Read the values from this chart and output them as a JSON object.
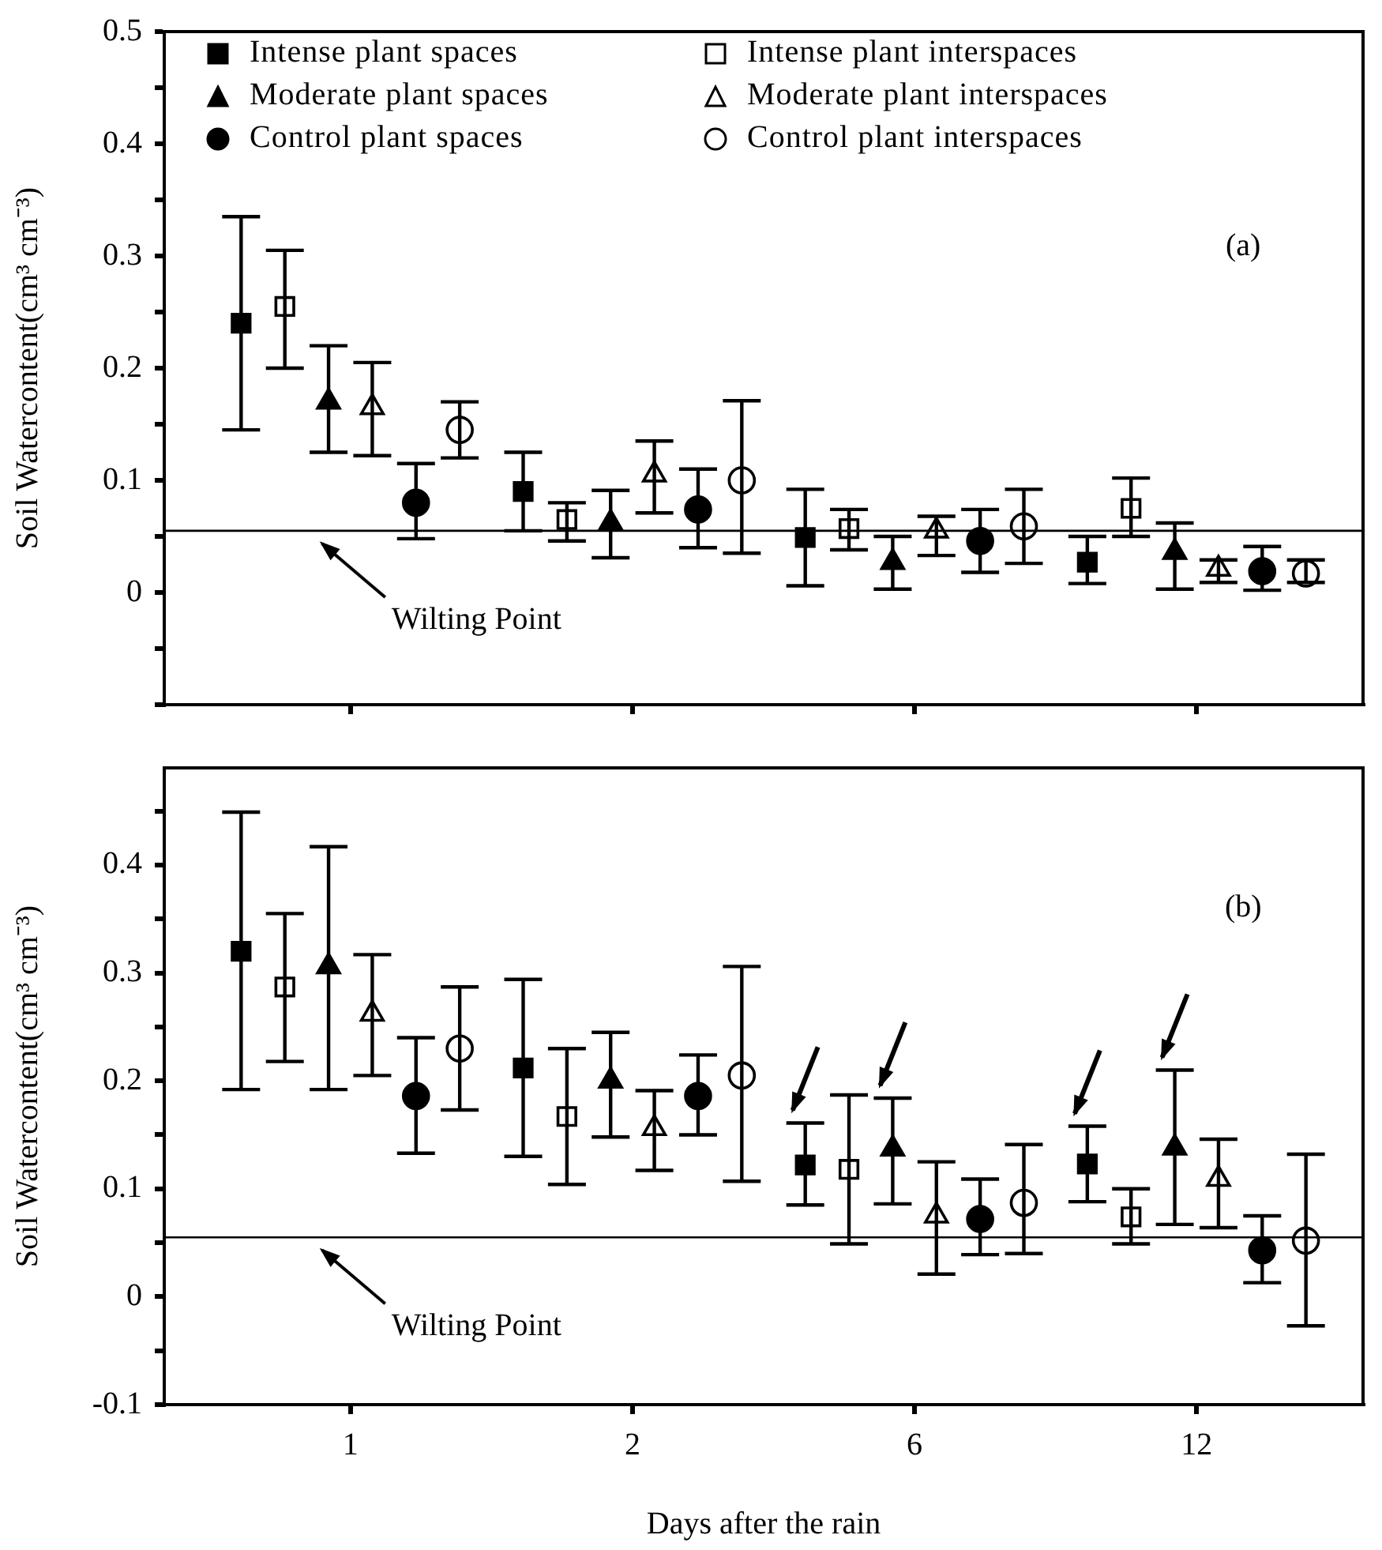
{
  "chart_data": [
    {
      "type": "scatter",
      "ylabel": "Soil Watercontent(cm³ cm⁻³)",
      "categories": [
        "1",
        "2",
        "6",
        "12"
      ],
      "ylim": [
        -0.1,
        0.5
      ],
      "yticks": [
        {
          "value": -0.1,
          "label": null
        },
        {
          "value": -0.05,
          "label": null
        },
        0,
        {
          "value": 0.05,
          "label": null
        },
        0.1,
        {
          "value": 0.15,
          "label": null
        },
        0.2,
        {
          "value": 0.25,
          "label": null
        },
        0.3,
        {
          "value": 0.35,
          "label": null
        },
        0.4,
        {
          "value": 0.45,
          "label": null
        },
        0.5
      ],
      "tick_labels": "y",
      "grid": false,
      "legend": "top left",
      "annotations": [
        "(a)"
      ],
      "ref_lines": [
        {
          "axis": "y",
          "value": 0.055,
          "label": "Wilting Point",
          "color": "#000000"
        }
      ],
      "series": [
        {
          "name": "Intense plant spaces",
          "color": "#000000",
          "marker": "square",
          "values": [
            0.24,
            0.09,
            0.049,
            0.027
          ],
          "errors": [
            [
              0.145,
              0.335
            ],
            [
              0.055,
              0.125
            ],
            [
              0.006,
              0.092
            ],
            [
              0.008,
              0.05
            ]
          ]
        },
        {
          "name": "Intense plant interspaces",
          "color": "#ffffff",
          "marker": "square",
          "values": [
            0.255,
            0.065,
            0.057,
            0.075
          ],
          "errors": [
            [
              0.2,
              0.305
            ],
            [
              0.046,
              0.08
            ],
            [
              0.038,
              0.074
            ],
            [
              0.05,
              0.102
            ]
          ]
        },
        {
          "name": "Moderate plant spaces",
          "color": "#000000",
          "marker": "triangle",
          "values": [
            0.17,
            0.062,
            0.027,
            0.036
          ],
          "errors": [
            [
              0.125,
              0.22
            ],
            [
              0.031,
              0.091
            ],
            [
              0.003,
              0.05
            ],
            [
              0.003,
              0.062
            ]
          ]
        },
        {
          "name": "Moderate plant interspaces",
          "color": "#ffffff",
          "marker": "triangle",
          "values": [
            0.165,
            0.105,
            0.055,
            0.021
          ],
          "errors": [
            [
              0.122,
              0.205
            ],
            [
              0.071,
              0.135
            ],
            [
              0.033,
              0.068
            ],
            [
              0.009,
              0.029
            ]
          ]
        },
        {
          "name": "Control plant spaces",
          "color": "#000000",
          "marker": "circle",
          "values": [
            0.08,
            0.074,
            0.046,
            0.019
          ],
          "errors": [
            [
              0.048,
              0.115
            ],
            [
              0.04,
              0.11
            ],
            [
              0.018,
              0.074
            ],
            [
              0.002,
              0.041
            ]
          ]
        },
        {
          "name": "Control plant interspaces",
          "color": "#ffffff",
          "marker": "circle",
          "values": [
            0.145,
            0.1,
            0.059,
            0.017
          ],
          "errors": [
            [
              0.12,
              0.17
            ],
            [
              0.035,
              0.171
            ],
            [
              0.026,
              0.092
            ],
            [
              0.009,
              0.029
            ]
          ]
        }
      ]
    },
    {
      "type": "scatter",
      "ylabel": "Soil Watercontent(cm³ cm⁻³)",
      "xlabel": "Days after the rain",
      "categories": [
        "1",
        "2",
        "6",
        "12"
      ],
      "ylim": [
        -0.1,
        0.49
      ],
      "yticks": [
        -0.1,
        {
          "value": -0.05,
          "label": null
        },
        0,
        {
          "value": 0.05,
          "label": null
        },
        0.1,
        {
          "value": 0.15,
          "label": null
        },
        0.2,
        {
          "value": 0.25,
          "label": null
        },
        0.3,
        {
          "value": 0.35,
          "label": null
        },
        0.4,
        {
          "value": 0.45,
          "label": null
        }
      ],
      "grid": false,
      "annotations": [
        "(b)"
      ],
      "ref_lines": [
        {
          "axis": "y",
          "value": 0.055,
          "label": "Wilting Point",
          "color": "#000000"
        }
      ],
      "series": [
        {
          "color": "#000000",
          "marker": "square",
          "values": [
            0.32,
            0.212,
            0.122,
            0.123
          ],
          "errors": [
            [
              0.192,
              0.449
            ],
            [
              0.13,
              0.294
            ],
            [
              0.085,
              0.161
            ],
            [
              0.088,
              0.158
            ]
          ]
        },
        {
          "color": "#ffffff",
          "marker": "square",
          "values": [
            0.287,
            0.167,
            0.118,
            0.074
          ],
          "errors": [
            [
              0.218,
              0.355
            ],
            [
              0.104,
              0.23
            ],
            [
              0.049,
              0.187
            ],
            [
              0.049,
              0.1
            ]
          ]
        },
        {
          "color": "#000000",
          "marker": "triangle",
          "values": [
            0.306,
            0.2,
            0.137,
            0.138
          ],
          "errors": [
            [
              0.192,
              0.417
            ],
            [
              0.148,
              0.245
            ],
            [
              0.086,
              0.184
            ],
            [
              0.067,
              0.21
            ]
          ]
        },
        {
          "color": "#ffffff",
          "marker": "triangle",
          "values": [
            0.262,
            0.156,
            0.075,
            0.109
          ],
          "errors": [
            [
              0.205,
              0.317
            ],
            [
              0.117,
              0.191
            ],
            [
              0.021,
              0.125
            ],
            [
              0.064,
              0.146
            ]
          ]
        },
        {
          "color": "#000000",
          "marker": "circle",
          "values": [
            0.186,
            0.186,
            0.072,
            0.043
          ],
          "errors": [
            [
              0.133,
              0.24
            ],
            [
              0.15,
              0.224
            ],
            [
              0.039,
              0.109
            ],
            [
              0.013,
              0.075
            ]
          ]
        },
        {
          "color": "#ffffff",
          "marker": "circle",
          "values": [
            0.23,
            0.205,
            0.087,
            0.052
          ],
          "errors": [
            [
              0.173,
              0.287
            ],
            [
              0.107,
              0.306
            ],
            [
              0.04,
              0.141
            ],
            [
              -0.027,
              0.132
            ]
          ]
        }
      ]
    }
  ]
}
